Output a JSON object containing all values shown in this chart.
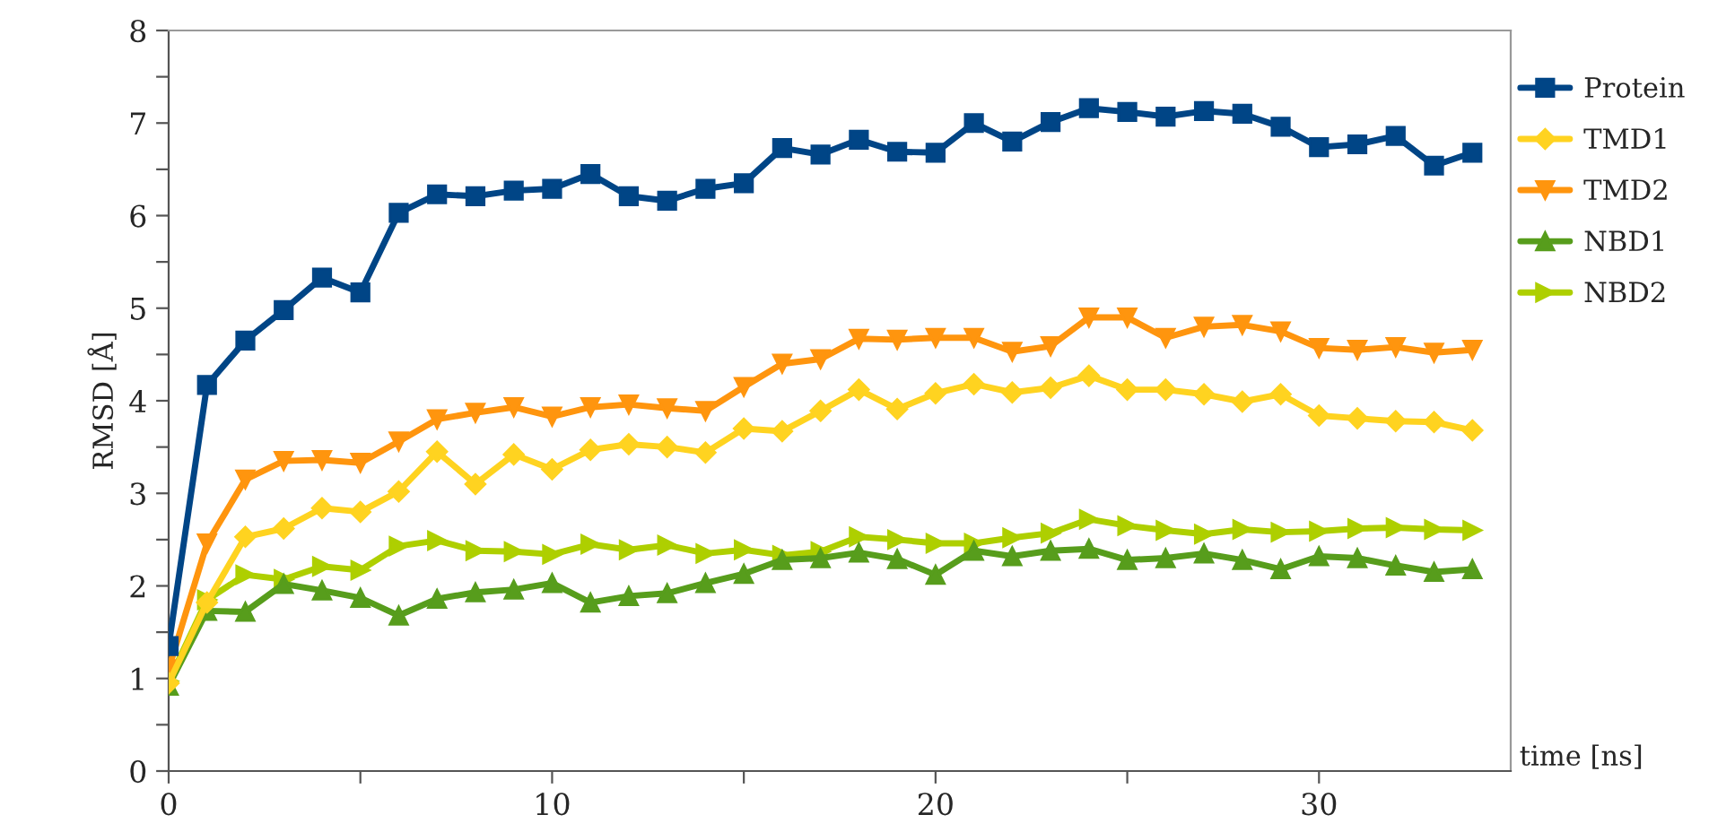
{
  "chart_data": {
    "type": "line",
    "xlabel": "time [ns]",
    "ylabel": "RMSD [Å]",
    "x": [
      0,
      1,
      2,
      3,
      4,
      5,
      6,
      7,
      8,
      9,
      10,
      11,
      12,
      13,
      14,
      15,
      16,
      17,
      18,
      19,
      20,
      21,
      22,
      23,
      24,
      25,
      26,
      27,
      28,
      29,
      30,
      31,
      32,
      33,
      34
    ],
    "series": [
      {
        "name": "Protein",
        "color": "#004586",
        "marker": "square",
        "values": [
          1.35,
          4.17,
          4.65,
          4.98,
          5.33,
          5.17,
          6.03,
          6.23,
          6.21,
          6.27,
          6.29,
          6.45,
          6.21,
          6.16,
          6.29,
          6.35,
          6.73,
          6.66,
          6.82,
          6.69,
          6.68,
          7.0,
          6.8,
          7.01,
          7.16,
          7.12,
          7.07,
          7.13,
          7.1,
          6.96,
          6.74,
          6.77,
          6.86,
          6.54,
          6.68
        ]
      },
      {
        "name": "TMD1",
        "color": "#ffd320",
        "marker": "diamond",
        "values": [
          0.95,
          1.82,
          2.53,
          2.62,
          2.84,
          2.8,
          3.02,
          3.45,
          3.1,
          3.42,
          3.26,
          3.47,
          3.53,
          3.5,
          3.44,
          3.7,
          3.67,
          3.89,
          4.12,
          3.91,
          4.08,
          4.18,
          4.09,
          4.14,
          4.27,
          4.12,
          4.12,
          4.07,
          3.99,
          4.07,
          3.84,
          3.81,
          3.78,
          3.77,
          3.68
        ]
      },
      {
        "name": "TMD2",
        "color": "#ff950e",
        "marker": "triangle_down",
        "values": [
          1.1,
          2.46,
          3.15,
          3.35,
          3.36,
          3.33,
          3.56,
          3.8,
          3.87,
          3.93,
          3.83,
          3.93,
          3.96,
          3.92,
          3.89,
          4.15,
          4.4,
          4.45,
          4.67,
          4.66,
          4.68,
          4.68,
          4.53,
          4.59,
          4.9,
          4.9,
          4.68,
          4.8,
          4.82,
          4.75,
          4.57,
          4.55,
          4.58,
          4.52,
          4.55
        ]
      },
      {
        "name": "NBD1",
        "color": "#579d1c",
        "marker": "triangle",
        "values": [
          0.92,
          1.73,
          1.72,
          2.02,
          1.95,
          1.87,
          1.68,
          1.86,
          1.93,
          1.96,
          2.03,
          1.82,
          1.89,
          1.92,
          2.03,
          2.13,
          2.28,
          2.3,
          2.36,
          2.29,
          2.12,
          2.38,
          2.32,
          2.38,
          2.4,
          2.28,
          2.3,
          2.35,
          2.28,
          2.18,
          2.32,
          2.3,
          2.22,
          2.15,
          2.18
        ]
      },
      {
        "name": "NBD2",
        "color": "#aecf00",
        "marker": "triangle_right",
        "values": [
          0.97,
          1.85,
          2.12,
          2.07,
          2.21,
          2.17,
          2.43,
          2.49,
          2.38,
          2.37,
          2.34,
          2.45,
          2.39,
          2.44,
          2.35,
          2.39,
          2.33,
          2.37,
          2.53,
          2.5,
          2.46,
          2.46,
          2.52,
          2.57,
          2.72,
          2.65,
          2.6,
          2.56,
          2.61,
          2.58,
          2.59,
          2.62,
          2.63,
          2.61,
          2.6
        ]
      }
    ],
    "xlim": [
      0,
      35
    ],
    "ylim": [
      0,
      8
    ],
    "xticks": [
      0,
      {
        "value": 5,
        "label": null
      },
      10,
      {
        "value": 15,
        "label": null
      },
      20,
      {
        "value": 25,
        "label": null
      },
      30
    ],
    "yticks": [
      0,
      {
        "value": 0.5,
        "label": null
      },
      1,
      {
        "value": 1.5,
        "label": null
      },
      2,
      {
        "value": 2.5,
        "label": null
      },
      3,
      {
        "value": 3.5,
        "label": null
      },
      4,
      {
        "value": 4.5,
        "label": null
      },
      5,
      {
        "value": 5.5,
        "label": null
      },
      6,
      {
        "value": 6.5,
        "label": null
      },
      7,
      {
        "value": 7.5,
        "label": null
      },
      8
    ],
    "grid": false,
    "legend": "right",
    "line_style": "solid"
  }
}
